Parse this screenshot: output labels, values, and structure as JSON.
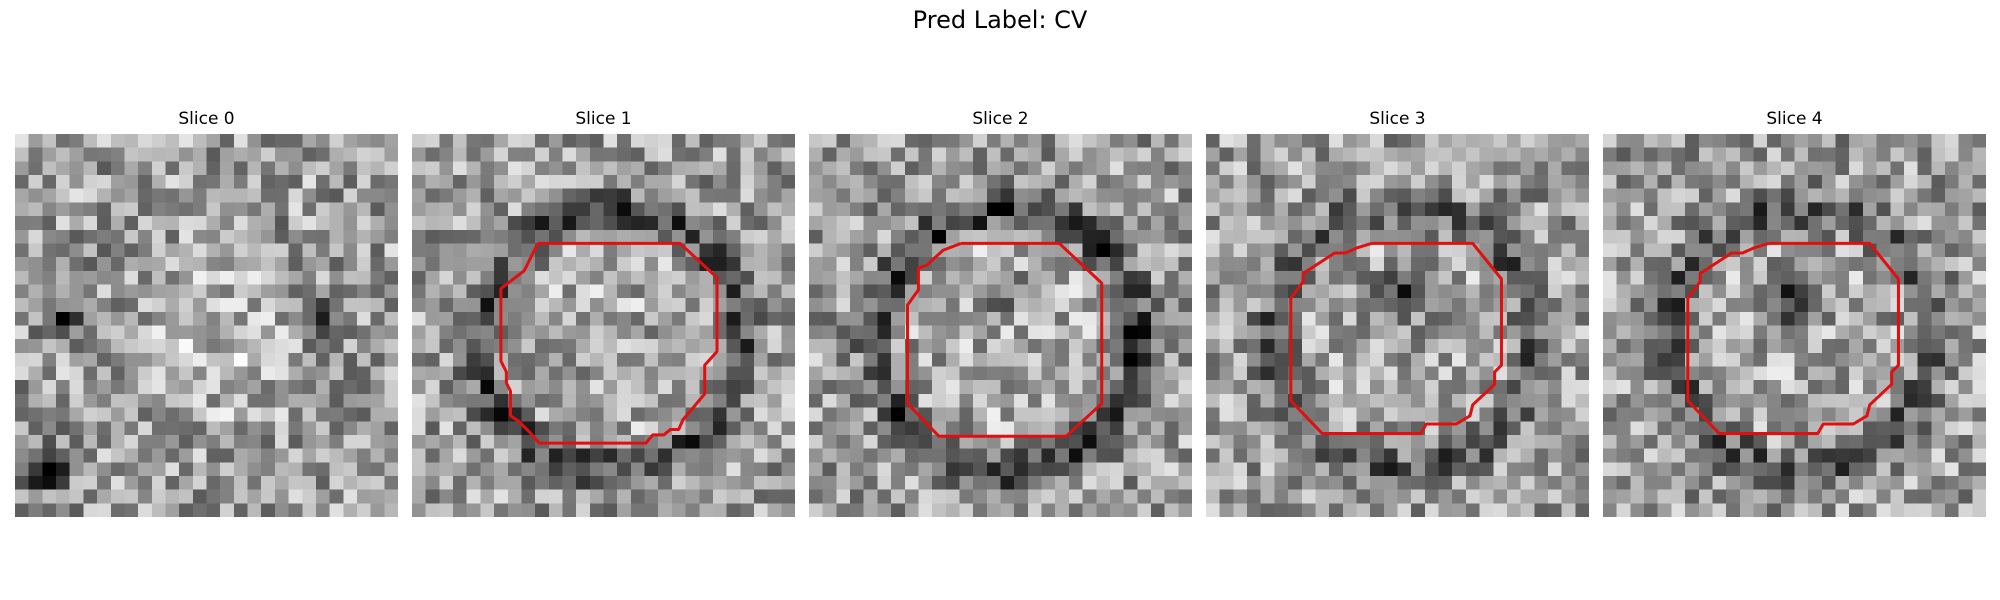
{
  "figure": {
    "title": "Pred Label: CV",
    "contour_color": "#e01010"
  },
  "slices": [
    {
      "label": "Slice 0",
      "ring": 0.05,
      "blob": 0.0,
      "noise_seed": 11,
      "has_contour": false
    },
    {
      "label": "Slice 1",
      "ring": 0.55,
      "blob": 0.0,
      "noise_seed": 23,
      "has_contour": true
    },
    {
      "label": "Slice 2",
      "ring": 0.65,
      "blob": 0.35,
      "noise_seed": 37,
      "has_contour": true
    },
    {
      "label": "Slice 3",
      "ring": 0.45,
      "blob": 0.85,
      "noise_seed": 41,
      "has_contour": true
    },
    {
      "label": "Slice 4",
      "ring": 0.45,
      "blob": 0.9,
      "noise_seed": 53,
      "has_contour": true
    }
  ]
}
